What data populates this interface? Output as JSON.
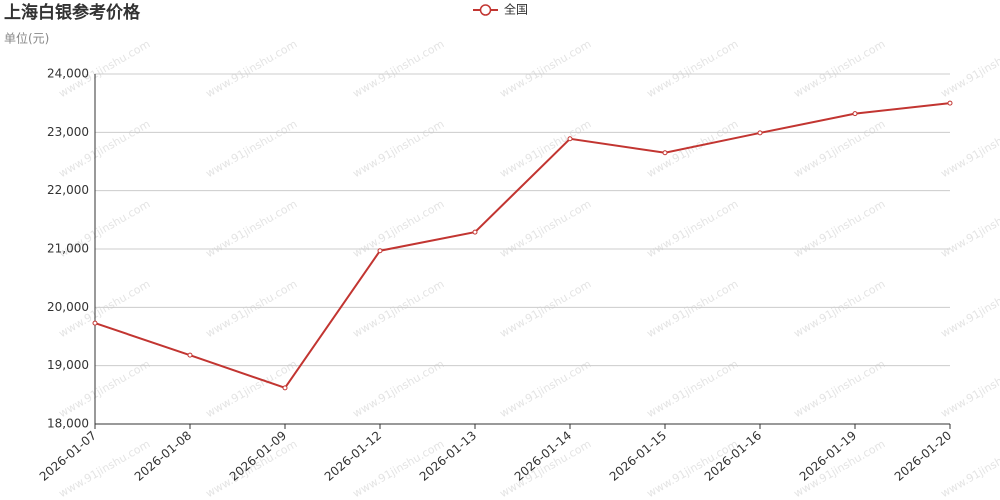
{
  "chart_data": {
    "type": "line",
    "title": "上海白银参考价格",
    "subtitle": "单位(元)",
    "watermark": "www.91jinshu.com",
    "categories": [
      "2026-01-07",
      "2026-01-08",
      "2026-01-09",
      "2026-01-12",
      "2026-01-13",
      "2026-01-14",
      "2026-01-15",
      "2026-01-16",
      "2026-01-19",
      "2026-01-20"
    ],
    "series": [
      {
        "name": "全国",
        "color": "#c23531",
        "values": [
          19730,
          19180,
          18620,
          20970,
          21290,
          22890,
          22650,
          22990,
          23320,
          23500
        ]
      }
    ],
    "ylim": [
      18000,
      24000
    ],
    "yticks": [
      {
        "value": 18000,
        "label": "18,000"
      },
      {
        "value": 19000,
        "label": "19,000"
      },
      {
        "value": 20000,
        "label": "20,000"
      },
      {
        "value": 21000,
        "label": "21,000"
      },
      {
        "value": 22000,
        "label": "22,000"
      },
      {
        "value": 23000,
        "label": "23,000"
      },
      {
        "value": 24000,
        "label": "24,000"
      }
    ],
    "grid": true,
    "legend": "top"
  }
}
